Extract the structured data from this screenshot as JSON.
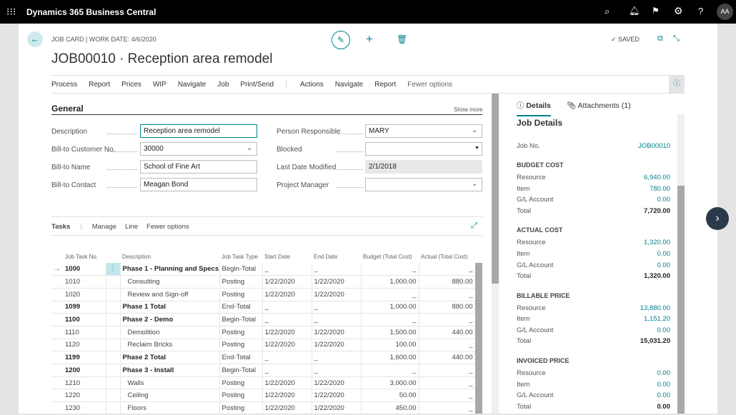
{
  "app": {
    "title": "Dynamics 365 Business Central",
    "avatar": "AA"
  },
  "header": {
    "breadcrumb": "JOB CARD | WORK DATE: 4/6/2020",
    "title": "JOB00010 · Reception area remodel",
    "saved": "SAVED"
  },
  "actions": [
    "Process",
    "Report",
    "Prices",
    "WIP",
    "Navigate",
    "Job",
    "Print/Send"
  ],
  "actions2": [
    "Actions",
    "Navigate",
    "Report",
    "Fewer options"
  ],
  "general": {
    "title": "General",
    "show_more": "Show more",
    "fields": [
      {
        "label": "Description",
        "value": "Reception area remodel"
      },
      {
        "label": "Bill-to Customer No.",
        "value": "30000"
      },
      {
        "label": "Bill-to Name",
        "value": "School of Fine Art"
      },
      {
        "label": "Bill-to Contact",
        "value": "Meagan Bond"
      }
    ],
    "fields_right": [
      {
        "label": "Person Responsible",
        "value": "MARY"
      },
      {
        "label": "Blocked",
        "value": ""
      },
      {
        "label": "Last Date Modified",
        "value": "2/1/2018"
      },
      {
        "label": "Project Manager",
        "value": ""
      }
    ]
  },
  "tasks": {
    "tabs": [
      "Tasks",
      "Manage",
      "Line",
      "Fewer options"
    ],
    "columns": [
      "Job Task No.",
      "Description",
      "Job Task Type",
      "Start Date",
      "End Date",
      "Budget (Total Cost)",
      "Actual (Total Cost)"
    ],
    "rows": [
      [
        "1000",
        "Phase 1 - Planning and Specs",
        "Begin-Total",
        "_",
        "_",
        "_",
        "_"
      ],
      [
        "1010",
        "Consulting",
        "Posting",
        "1/22/2020",
        "1/22/2020",
        "1,000.00",
        "880.00"
      ],
      [
        "1020",
        "Review and Sign-off",
        "Posting",
        "1/22/2020",
        "1/22/2020",
        "_",
        "_"
      ],
      [
        "1099",
        "Phase 1 Total",
        "End-Total",
        "_",
        "_",
        "1,000.00",
        "880.00"
      ],
      [
        "1100",
        "Phase 2 - Demo",
        "Begin-Total",
        "_",
        "_",
        "_",
        "_"
      ],
      [
        "1110",
        "Demolition",
        "Posting",
        "1/22/2020",
        "1/22/2020",
        "1,500.00",
        "440.00"
      ],
      [
        "1120",
        "Reclaim Bricks",
        "Posting",
        "1/22/2020",
        "1/22/2020",
        "100.00",
        "_"
      ],
      [
        "1199",
        "Phase 2 Total",
        "End-Total",
        "_",
        "_",
        "1,600.00",
        "440.00"
      ],
      [
        "1200",
        "Phase 3 - Install",
        "Begin-Total",
        "_",
        "_",
        "_",
        "_"
      ],
      [
        "1210",
        "Walls",
        "Posting",
        "1/22/2020",
        "1/22/2020",
        "3,000.00",
        "_"
      ],
      [
        "1220",
        "Ceiling",
        "Posting",
        "1/22/2020",
        "1/22/2020",
        "50.00",
        "_"
      ],
      [
        "1230",
        "Floors",
        "Posting",
        "1/22/2020",
        "1/22/2020",
        "450.00",
        "_"
      ]
    ]
  },
  "factbox": {
    "tabs": [
      "Details",
      "Attachments (1)"
    ],
    "title": "Job Details",
    "job_no_label": "Job No.",
    "job_no": "JOB00010",
    "sections": [
      {
        "title": "BUDGET COST",
        "rows": [
          [
            "Resource",
            "6,940.00"
          ],
          [
            "Item",
            "780.00"
          ],
          [
            "G/L Account",
            "0.00"
          ],
          [
            "Total",
            "7,720.00"
          ]
        ]
      },
      {
        "title": "ACTUAL COST",
        "rows": [
          [
            "Resource",
            "1,320.00"
          ],
          [
            "Item",
            "0.00"
          ],
          [
            "G/L Account",
            "0.00"
          ],
          [
            "Total",
            "1,320.00"
          ]
        ]
      },
      {
        "title": "BILLABLE PRICE",
        "rows": [
          [
            "Resource",
            "13,880.00"
          ],
          [
            "Item",
            "1,151.20"
          ],
          [
            "G/L Account",
            "0.00"
          ],
          [
            "Total",
            "15,031.20"
          ]
        ]
      },
      {
        "title": "INVOICED PRICE",
        "rows": [
          [
            "Resource",
            "0.00"
          ],
          [
            "Item",
            "0.00"
          ],
          [
            "G/L Account",
            "0.00"
          ],
          [
            "Total",
            "0.00"
          ]
        ]
      }
    ]
  },
  "colors": {
    "accent": "#00848f",
    "topbar": "#000000"
  }
}
